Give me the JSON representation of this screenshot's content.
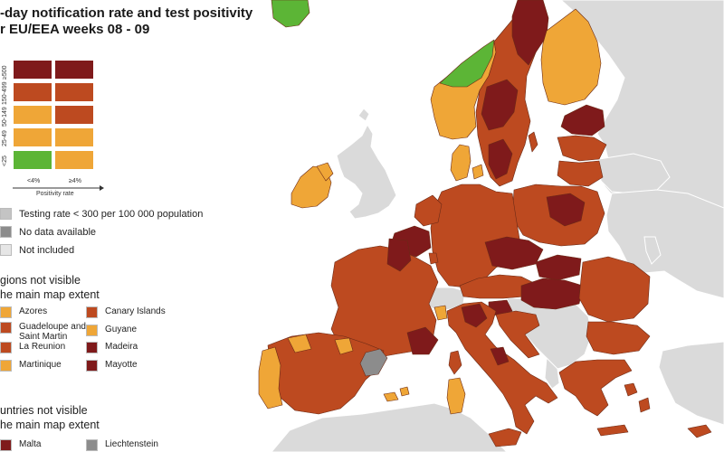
{
  "colors": {
    "sea": "#ffffff",
    "non_eu": "#dadada",
    "no_data": "#8c8c8c",
    "low_testing": "#c4c4c4",
    "green": "#5cb536",
    "orange": "#efa637",
    "red": "#bd4a20",
    "dark_red": "#7f1a1b",
    "border": "#6b2a16"
  },
  "title": {
    "line1": "-day notification rate and test positivity",
    "line2": "r EU/EEA weeks 08 - 09"
  },
  "matrix": {
    "rate_labels": [
      "≥500",
      "150-499",
      "50-149",
      "25-49",
      "<25"
    ],
    "positivity_labels": [
      "<4%",
      "≥4%"
    ],
    "positivity_axis_label": "Positivity rate",
    "cells": [
      [
        "dark_red",
        "dark_red"
      ],
      [
        "red",
        "red"
      ],
      [
        "orange",
        "red"
      ],
      [
        "orange",
        "orange"
      ],
      [
        "green",
        "orange"
      ]
    ]
  },
  "legend": {
    "testing_rate": "Testing rate < 300 per 100 000 population",
    "no_data": "No data available",
    "not_included": "Not included"
  },
  "regions_section": {
    "heading_line1": "gions not visible",
    "heading_line2": "he main map extent",
    "items": [
      {
        "label": "Azores",
        "color": "orange"
      },
      {
        "label": "Guadeloupe and Saint Martin",
        "color": "red"
      },
      {
        "label": "La Reunion",
        "color": "red"
      },
      {
        "label": "Martinique",
        "color": "orange"
      },
      {
        "label": "Canary Islands",
        "color": "red"
      },
      {
        "label": "Guyane",
        "color": "orange"
      },
      {
        "label": "Madeira",
        "color": "dark_red"
      },
      {
        "label": "Mayotte",
        "color": "dark_red"
      }
    ]
  },
  "countries_section": {
    "heading_line1": "untries not visible",
    "heading_line2": "he main map extent",
    "items": [
      {
        "label": "Malta",
        "color": "dark_red"
      },
      {
        "label": "Liechtenstein",
        "color": "no_data"
      }
    ]
  }
}
